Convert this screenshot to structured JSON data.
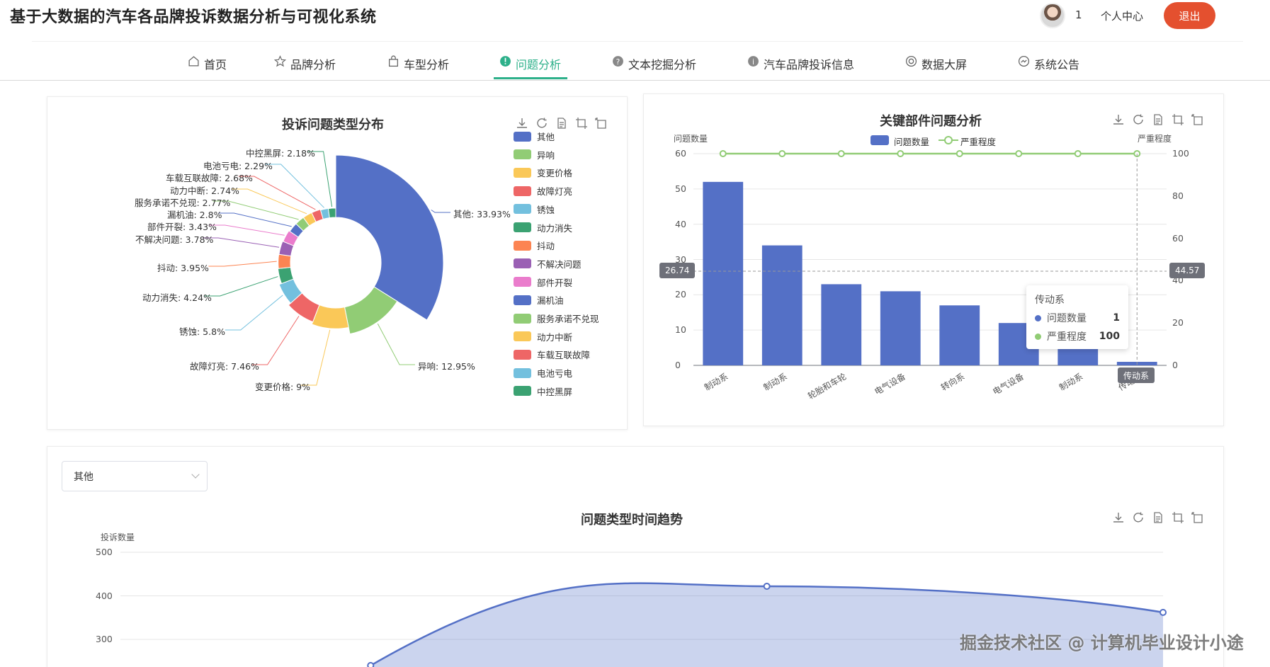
{
  "header": {
    "app_title": "基于大数据的汽车各品牌投诉数据分析与可视化系统",
    "user_count": "1",
    "personal_center": "个人中心",
    "logout": "退出"
  },
  "nav": {
    "items": [
      {
        "label": "首页",
        "icon": "home-icon"
      },
      {
        "label": "品牌分析",
        "icon": "star-icon"
      },
      {
        "label": "车型分析",
        "icon": "bag-icon"
      },
      {
        "label": "问题分析",
        "icon": "alert-icon"
      },
      {
        "label": "文本挖掘分析",
        "icon": "question-icon"
      },
      {
        "label": "汽车品牌投诉信息",
        "icon": "info-icon"
      },
      {
        "label": "数据大屏",
        "icon": "screen-icon"
      },
      {
        "label": "系统公告",
        "icon": "notice-icon"
      }
    ],
    "active_index": 3
  },
  "colors": {
    "accent": "#2db08a",
    "logout": "#e4502f",
    "palette": [
      "#5470c6",
      "#91cc75",
      "#fac858",
      "#ee6666",
      "#73c0de",
      "#3ba272",
      "#fc8452",
      "#9a60b4",
      "#ea7ccc"
    ]
  },
  "filter": {
    "selected": "其他"
  },
  "watermark": "掘金技术社区 @ 计算机毕业设计小途",
  "chart_data": [
    {
      "type": "pie",
      "title": "投诉问题类型分布",
      "slices": [
        {
          "name": "其他",
          "value": 33.93,
          "label": "其他: 33.93%"
        },
        {
          "name": "异响",
          "value": 12.95,
          "label": "异响: 12.95%"
        },
        {
          "name": "变更价格",
          "value": 9,
          "label": "变更价格: 9%"
        },
        {
          "name": "故障灯亮",
          "value": 7.46,
          "label": "故障灯亮: 7.46%"
        },
        {
          "name": "锈蚀",
          "value": 5.8,
          "label": "锈蚀: 5.8%"
        },
        {
          "name": "动力消失",
          "value": 4.24,
          "label": "动力消失: 4.24%"
        },
        {
          "name": "抖动",
          "value": 3.95,
          "label": "抖动: 3.95%"
        },
        {
          "name": "不解决问题",
          "value": 3.78,
          "label": "不解决问题: 3.78%"
        },
        {
          "name": "部件开裂",
          "value": 3.43,
          "label": "部件开裂: 3.43%"
        },
        {
          "name": "漏机油",
          "value": 2.8,
          "label": "漏机油: 2.8%"
        },
        {
          "name": "服务承诺不兑现",
          "value": 2.77,
          "label": "服务承诺不兑现: 2.77%"
        },
        {
          "name": "动力中断",
          "value": 2.74,
          "label": "动力中断: 2.74%"
        },
        {
          "name": "车载互联故障",
          "value": 2.68,
          "label": "车载互联故障: 2.68%"
        },
        {
          "name": "电池亏电",
          "value": 2.29,
          "label": "电池亏电: 2.29%"
        },
        {
          "name": "中控黑屏",
          "value": 2.18,
          "label": "中控黑屏: 2.18%"
        }
      ],
      "legend": [
        "其他",
        "异响",
        "变更价格",
        "故障灯亮",
        "锈蚀",
        "动力消失",
        "抖动",
        "不解决问题",
        "部件开裂",
        "漏机油",
        "服务承诺不兑现",
        "动力中断",
        "车载互联故障",
        "电池亏电",
        "中控黑屏"
      ],
      "style": "rose-donut",
      "legend_position": "right"
    },
    {
      "type": "bar",
      "title": "关键部件问题分析",
      "categories": [
        "制动系",
        "制动系",
        "轮胎和车轮",
        "电气设备",
        "转向系",
        "电气设备",
        "制动系",
        "传动系"
      ],
      "series": [
        {
          "name": "问题数量",
          "type": "bar",
          "values": [
            52,
            34,
            23,
            21,
            17,
            12,
            9,
            1
          ]
        },
        {
          "name": "严重程度",
          "type": "line",
          "values": [
            100,
            100,
            100,
            100,
            100,
            100,
            100,
            100
          ]
        }
      ],
      "ylabel_left": "问题数量",
      "ylabel_right": "严重程度",
      "ylim_left": [
        0,
        60
      ],
      "ylim_right": [
        0,
        100
      ],
      "yticks_left": [
        "0",
        "10",
        "20",
        "30",
        "40",
        "50",
        "60"
      ],
      "yticks_right": [
        "0",
        "20",
        "40",
        "60",
        "80",
        "100"
      ],
      "axis_pointer": {
        "left": "26.74",
        "right": "44.57",
        "category": "传动系"
      },
      "tooltip": {
        "title": "传动系",
        "rows": [
          {
            "name": "问题数量",
            "value": "1"
          },
          {
            "name": "严重程度",
            "value": "100"
          }
        ]
      },
      "legend_position": "top"
    },
    {
      "type": "area",
      "title": "问题类型时间趋势",
      "ylabel": "投诉数量",
      "yticks": [
        "500",
        "400",
        "300"
      ],
      "series": [
        {
          "name": "其他",
          "values": [
            {
              "x": 0.24,
              "y": 240
            },
            {
              "x": 0.62,
              "y": 422
            },
            {
              "x": 1.0,
              "y": 362
            }
          ]
        }
      ],
      "ylim": [
        200,
        500
      ]
    }
  ]
}
